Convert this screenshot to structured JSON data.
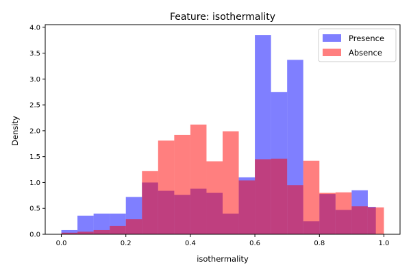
{
  "chart_data": {
    "type": "histogram",
    "title": "Feature: isothermality",
    "xlabel": "isothermality",
    "ylabel": "Density",
    "xlim": [
      -0.05,
      1.05
    ],
    "ylim": [
      0,
      4.05
    ],
    "xticks": [
      0.0,
      0.2,
      0.4,
      0.6,
      0.8,
      1.0
    ],
    "xtick_labels": [
      "0.0",
      "0.2",
      "0.4",
      "0.6",
      "0.8",
      "1.0"
    ],
    "yticks": [
      0.0,
      0.5,
      1.0,
      1.5,
      2.0,
      2.5,
      3.0,
      3.5,
      4.0
    ],
    "ytick_labels": [
      "0.0",
      "0.5",
      "1.0",
      "1.5",
      "2.0",
      "2.5",
      "3.0",
      "3.5",
      "4.0"
    ],
    "legend_position": "upper right",
    "grid": false,
    "series": [
      {
        "name": "Presence",
        "color": "#0000ff",
        "alpha": 0.5,
        "bins": [
          {
            "x0": 0.0,
            "x1": 0.05,
            "value": 0.08
          },
          {
            "x0": 0.05,
            "x1": 0.1,
            "value": 0.36
          },
          {
            "x0": 0.1,
            "x1": 0.15,
            "value": 0.4
          },
          {
            "x0": 0.15,
            "x1": 0.2,
            "value": 0.4
          },
          {
            "x0": 0.2,
            "x1": 0.25,
            "value": 0.72
          },
          {
            "x0": 0.25,
            "x1": 0.3,
            "value": 1.0
          },
          {
            "x0": 0.3,
            "x1": 0.35,
            "value": 0.84
          },
          {
            "x0": 0.35,
            "x1": 0.4,
            "value": 0.76
          },
          {
            "x0": 0.4,
            "x1": 0.45,
            "value": 0.88
          },
          {
            "x0": 0.45,
            "x1": 0.5,
            "value": 0.8
          },
          {
            "x0": 0.5,
            "x1": 0.55,
            "value": 0.4
          },
          {
            "x0": 0.55,
            "x1": 0.6,
            "value": 1.1
          },
          {
            "x0": 0.6,
            "x1": 0.65,
            "value": 3.85
          },
          {
            "x0": 0.65,
            "x1": 0.7,
            "value": 2.75
          },
          {
            "x0": 0.7,
            "x1": 0.75,
            "value": 3.37
          },
          {
            "x0": 0.75,
            "x1": 0.8,
            "value": 0.25
          },
          {
            "x0": 0.8,
            "x1": 0.85,
            "value": 0.78
          },
          {
            "x0": 0.85,
            "x1": 0.9,
            "value": 0.47
          },
          {
            "x0": 0.9,
            "x1": 0.95,
            "value": 0.85
          },
          {
            "x0": 0.95,
            "x1": 0.975,
            "value": 0.53
          }
        ]
      },
      {
        "name": "Absence",
        "color": "#ff0000",
        "alpha": 0.5,
        "bins": [
          {
            "x0": 0.0,
            "x1": 0.05,
            "value": 0.03
          },
          {
            "x0": 0.05,
            "x1": 0.1,
            "value": 0.05
          },
          {
            "x0": 0.1,
            "x1": 0.15,
            "value": 0.08
          },
          {
            "x0": 0.15,
            "x1": 0.2,
            "value": 0.16
          },
          {
            "x0": 0.2,
            "x1": 0.25,
            "value": 0.29
          },
          {
            "x0": 0.25,
            "x1": 0.3,
            "value": 1.22
          },
          {
            "x0": 0.3,
            "x1": 0.35,
            "value": 1.81
          },
          {
            "x0": 0.35,
            "x1": 0.4,
            "value": 1.92
          },
          {
            "x0": 0.4,
            "x1": 0.45,
            "value": 2.12
          },
          {
            "x0": 0.45,
            "x1": 0.5,
            "value": 1.41
          },
          {
            "x0": 0.5,
            "x1": 0.55,
            "value": 1.99
          },
          {
            "x0": 0.55,
            "x1": 0.6,
            "value": 1.04
          },
          {
            "x0": 0.6,
            "x1": 0.65,
            "value": 1.45
          },
          {
            "x0": 0.65,
            "x1": 0.7,
            "value": 1.46
          },
          {
            "x0": 0.7,
            "x1": 0.75,
            "value": 0.95
          },
          {
            "x0": 0.75,
            "x1": 0.8,
            "value": 1.42
          },
          {
            "x0": 0.8,
            "x1": 0.85,
            "value": 0.8
          },
          {
            "x0": 0.85,
            "x1": 0.9,
            "value": 0.81
          },
          {
            "x0": 0.9,
            "x1": 0.95,
            "value": 0.54
          },
          {
            "x0": 0.95,
            "x1": 1.0,
            "value": 0.52
          }
        ]
      }
    ]
  }
}
